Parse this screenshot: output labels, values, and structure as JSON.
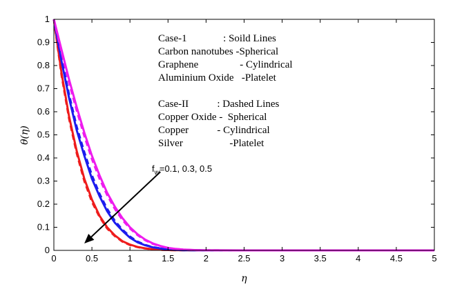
{
  "chart_data": {
    "type": "line",
    "title": "",
    "xlabel": "η",
    "ylabel": "θ(η)",
    "xlim": [
      0,
      5
    ],
    "ylim": [
      0,
      1
    ],
    "x_ticks": [
      "0",
      "0.5",
      "1",
      "1.5",
      "2",
      "2.5",
      "3",
      "3.5",
      "4",
      "4.5",
      "5"
    ],
    "y_ticks": [
      "0",
      "0.1",
      "0.2",
      "0.3",
      "0.4",
      "0.5",
      "0.6",
      "0.7",
      "0.8",
      "0.9",
      "1"
    ],
    "grid": false,
    "colors": {
      "red": "#ee1c1c",
      "blue": "#1c1cee",
      "magenta": "#ee1cee",
      "axis": "#000000"
    },
    "x": [
      0,
      0.1,
      0.2,
      0.3,
      0.4,
      0.5,
      0.6,
      0.7,
      0.8,
      0.9,
      1.0,
      1.1,
      1.2,
      1.3,
      1.4,
      1.5,
      1.6,
      1.7,
      1.8,
      1.9,
      2.0,
      2.5,
      3.0,
      4.0,
      5.0
    ],
    "series": [
      {
        "name": "Case-1 (Solid), fw=0.5",
        "color_key": "red",
        "dash": false,
        "values": [
          1,
          0.77,
          0.58,
          0.43,
          0.31,
          0.22,
          0.15,
          0.1,
          0.065,
          0.04,
          0.025,
          0.015,
          0.009,
          0.005,
          0.003,
          0.0015,
          0.001,
          0.0005,
          0.0003,
          0.0001,
          0,
          0,
          0,
          0,
          0
        ]
      },
      {
        "name": "Case-II (Dashed), fw=0.5",
        "color_key": "red",
        "dash": true,
        "values": [
          1,
          0.76,
          0.57,
          0.42,
          0.3,
          0.21,
          0.145,
          0.095,
          0.062,
          0.038,
          0.023,
          0.014,
          0.008,
          0.0045,
          0.0025,
          0.0013,
          0.0008,
          0.0004,
          0.0002,
          0.0001,
          0,
          0,
          0,
          0,
          0
        ]
      },
      {
        "name": "Case-1 (Solid), fw=0.3",
        "color_key": "blue",
        "dash": false,
        "values": [
          1,
          0.82,
          0.66,
          0.52,
          0.41,
          0.31,
          0.235,
          0.17,
          0.12,
          0.085,
          0.055,
          0.035,
          0.022,
          0.013,
          0.008,
          0.004,
          0.002,
          0.001,
          0.0005,
          0.0002,
          0.0001,
          0,
          0,
          0,
          0
        ]
      },
      {
        "name": "Case-II (Dashed), fw=0.3",
        "color_key": "blue",
        "dash": true,
        "values": [
          1,
          0.83,
          0.675,
          0.535,
          0.425,
          0.325,
          0.245,
          0.18,
          0.128,
          0.09,
          0.06,
          0.038,
          0.024,
          0.014,
          0.009,
          0.0045,
          0.0025,
          0.0012,
          0.0006,
          0.0003,
          0.0001,
          0,
          0,
          0,
          0
        ]
      },
      {
        "name": "Case-1 (Solid), fw=0.1",
        "color_key": "magenta",
        "dash": false,
        "values": [
          1,
          0.87,
          0.74,
          0.62,
          0.51,
          0.41,
          0.325,
          0.25,
          0.19,
          0.14,
          0.1,
          0.07,
          0.047,
          0.03,
          0.019,
          0.011,
          0.0065,
          0.0037,
          0.002,
          0.001,
          0.0005,
          0,
          0,
          0,
          0
        ]
      },
      {
        "name": "Case-II (Dashed), fw=0.1",
        "color_key": "magenta",
        "dash": true,
        "values": [
          1,
          0.86,
          0.725,
          0.605,
          0.495,
          0.395,
          0.31,
          0.24,
          0.18,
          0.132,
          0.095,
          0.066,
          0.044,
          0.028,
          0.018,
          0.0105,
          0.006,
          0.0034,
          0.0018,
          0.0009,
          0.0004,
          0,
          0,
          0,
          0
        ]
      }
    ],
    "legend_lines": [
      "Case-1              : Soild Lines",
      "Carbon nanotubes -Spherical",
      "Graphene                - Cylindrical",
      "Aluminium Oxide   -Platelet",
      "",
      "Case-II           : Dashed Lines",
      "Copper Oxide -  Spherical",
      "Copper           - Cylindrical",
      "Silver                  -Platelet"
    ],
    "annotation": {
      "label_prefix": "f",
      "label_sub": "w",
      "label_rest": "=0.1, 0.3, 0.5",
      "arrow_from": [
        1.4,
        0.34
      ],
      "arrow_to": [
        0.4,
        0.03
      ]
    }
  }
}
